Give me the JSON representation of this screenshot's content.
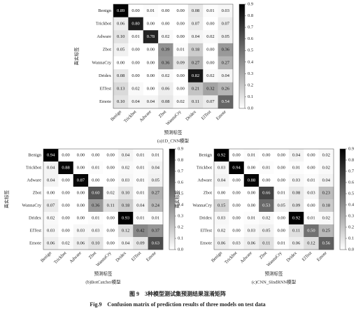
{
  "chart_data": [
    {
      "type": "heatmap",
      "title": "(a)1D_CNN模型",
      "xlabel": "预测标签",
      "ylabel": "真实标签",
      "x_categories": [
        "Benign",
        "Trickbot",
        "Adware",
        "Zbot",
        "WannaCry",
        "Dridex",
        "ElTest",
        "Emote"
      ],
      "y_categories": [
        "Benign",
        "Trickbot",
        "Adware",
        "Zbot",
        "WannaCry",
        "Dridex",
        "ElTest",
        "Emote"
      ],
      "values": [
        [
          0.89,
          0,
          0.01,
          0,
          0,
          0.08,
          0.01,
          0.03
        ],
        [
          0.06,
          0.8,
          0,
          0,
          0,
          0.07,
          0,
          0.07
        ],
        [
          0.1,
          0.01,
          0.78,
          0.02,
          0,
          0.04,
          0.02,
          0.05
        ],
        [
          0.05,
          0,
          0,
          0.39,
          0.01,
          0.18,
          0,
          0.36
        ],
        [
          0,
          0,
          0,
          0.36,
          0.09,
          0.27,
          0,
          0.27
        ],
        [
          0.08,
          0,
          0,
          0.02,
          0,
          0.82,
          0.02,
          0.04
        ],
        [
          0.13,
          0.02,
          0,
          0.06,
          0,
          0.21,
          0.32,
          0.26
        ],
        [
          0.1,
          0.04,
          0.04,
          0.08,
          0.02,
          0.11,
          0.07,
          0.54
        ]
      ],
      "value_labels": [
        [
          "0.89",
          "0.00",
          "0.01",
          "0.00",
          "0.00",
          "0.08",
          "0.01",
          "0.03"
        ],
        [
          "0.06",
          "0.80",
          "0.00",
          "0.00",
          "0.00",
          "0.07",
          "0.00",
          "0.07"
        ],
        [
          "0.10",
          "0.01",
          "0.78",
          "0.02",
          "0.00",
          "0.04",
          "0.02",
          "0.05"
        ],
        [
          "0.05",
          "0.00",
          "0.00",
          "0.39",
          "0.01",
          "0.18",
          "0.00",
          "0.36"
        ],
        [
          "0.00",
          "0.00",
          "0.00",
          "0.36",
          "0.09",
          "0.27",
          "0.00",
          "0.27"
        ],
        [
          "0.08",
          "0.00",
          "0.00",
          "0.02",
          "0.00",
          "0.82",
          "0.02",
          "0.04"
        ],
        [
          "0.13",
          "0.02",
          "0.00",
          "0.06",
          "0.00",
          "0.21",
          "0.32",
          "0.26"
        ],
        [
          "0.10",
          "0.04",
          "0.04",
          "0.08",
          "0.02",
          "0.11",
          "0.07",
          "0.54"
        ]
      ],
      "clim": [
        0,
        0.9
      ],
      "cticks": [
        {
          "value": 0,
          "label": "0.0"
        },
        0.1,
        0.2,
        0.3,
        0.4,
        0.5,
        0.6,
        0.7,
        0.8,
        0.9
      ]
    },
    {
      "type": "heatmap",
      "title": "(b)BotCatcher模型",
      "xlabel": "预测标签",
      "ylabel": "真实标签",
      "x_categories": [
        "Benign",
        "Trickbot",
        "Adware",
        "Zbot",
        "WannaCry",
        "Dridex",
        "ElTest",
        "Emote"
      ],
      "y_categories": [
        "Benign",
        "Trickbot",
        "Adware",
        "Zbot",
        "WannaCry",
        "Dridex",
        "ElTest",
        "Emote"
      ],
      "values": [
        [
          0.94,
          0,
          0,
          0,
          0,
          0.04,
          0.01,
          0.01
        ],
        [
          0.04,
          0.88,
          0,
          0.01,
          0,
          0.02,
          0.01,
          0.04
        ],
        [
          0.04,
          0,
          0.87,
          0,
          0,
          0.03,
          0.01,
          0.05
        ],
        [
          0,
          0,
          0,
          0.6,
          0.02,
          0.1,
          0.01,
          0.27
        ],
        [
          0.07,
          0,
          0,
          0.36,
          0.11,
          0.18,
          0.04,
          0.24
        ],
        [
          0.02,
          0,
          0,
          0.01,
          0,
          0.93,
          0.01,
          0.01
        ],
        [
          0.03,
          0,
          0.03,
          0.03,
          0,
          0.12,
          0.42,
          0.37
        ],
        [
          0.06,
          0.02,
          0.06,
          0.1,
          0,
          0.04,
          0.09,
          0.63
        ]
      ],
      "value_labels": [
        [
          "0.94",
          "0.00",
          "0.00",
          "0.00",
          "0.00",
          "0.04",
          "0.01",
          "0.01"
        ],
        [
          "0.04",
          "0.88",
          "0.00",
          "0.01",
          "0.00",
          "0.02",
          "0.01",
          "0.04"
        ],
        [
          "0.04",
          "0.00",
          "0.87",
          "0.00",
          "0.00",
          "0.03",
          "0.01",
          "0.05"
        ],
        [
          "0.00",
          "0.00",
          "0.00",
          "0.60",
          "0.02",
          "0.10",
          "0.01",
          "0.27"
        ],
        [
          "0.07",
          "0.00",
          "0.00",
          "0.36",
          "0.11",
          "0.18",
          "0.04",
          "0.24"
        ],
        [
          "0.02",
          "0.00",
          "0.00",
          "0.01",
          "0.00",
          "0.93",
          "0.01",
          "0.01"
        ],
        [
          "0.03",
          "0.00",
          "0.03",
          "0.03",
          "0.00",
          "0.12",
          "0.42",
          "0.37"
        ],
        [
          "0.06",
          "0.02",
          "0.06",
          "0.10",
          "0.00",
          "0.04",
          "0.09",
          "0.63"
        ]
      ],
      "clim": [
        0,
        0.9
      ],
      "cticks": [
        {
          "value": 0,
          "label": "0.0"
        },
        0.1,
        0.2,
        0.3,
        0.4,
        0.5,
        0.6,
        0.7,
        0.8,
        0.9
      ]
    },
    {
      "type": "heatmap",
      "title": "(c)CNN_SIndRNN模型",
      "xlabel": "预测标签",
      "ylabel": "真实标签",
      "x_categories": [
        "Benign",
        "Trickbot",
        "Adware",
        "Zbot",
        "WannaCry",
        "Dridex",
        "ElTest",
        "Emote"
      ],
      "y_categories": [
        "Benign",
        "Trickbot",
        "Adware",
        "Zbot",
        "WannaCry",
        "Dridex",
        "ElTest",
        "Emote"
      ],
      "values": [
        [
          0.92,
          0,
          0.01,
          0,
          0,
          0.04,
          0,
          0.02
        ],
        [
          0.03,
          0.94,
          0,
          0.01,
          0,
          0.01,
          0,
          0.02
        ],
        [
          0.04,
          0,
          0.88,
          0,
          0,
          0.03,
          0.01,
          0.04
        ],
        [
          0,
          0,
          0,
          0.66,
          0.01,
          0.08,
          0.03,
          0.23
        ],
        [
          0.15,
          0,
          0,
          0.53,
          0.05,
          0.09,
          0,
          0.18
        ],
        [
          0.03,
          0,
          0.01,
          0.02,
          0,
          0.92,
          0.01,
          0.02
        ],
        [
          0.02,
          0,
          0.03,
          0.05,
          0,
          0.11,
          0.5,
          0.25
        ],
        [
          0.06,
          0.03,
          0.06,
          0.11,
          0.01,
          0.06,
          0.12,
          0.56
        ]
      ],
      "value_labels": [
        [
          "0.92",
          "0.00",
          "0.01",
          "0.00",
          "0.00",
          "0.04",
          "0.00",
          "0.02"
        ],
        [
          "0.03",
          "0.94",
          "0.00",
          "0.01",
          "0.00",
          "0.01",
          "0.00",
          "0.02"
        ],
        [
          "0.04",
          "0.00",
          "0.88",
          "0.00",
          "0.00",
          "0.03",
          "0.01",
          "0.04"
        ],
        [
          "0.00",
          "0.00",
          "0.00",
          "0.66",
          "0.01",
          "0.08",
          "0.03",
          "0.23"
        ],
        [
          "0.15",
          "0.00",
          "0.00",
          "0.53",
          "0.05",
          "0.09",
          "0.00",
          "0.18"
        ],
        [
          "0.03",
          "0.00",
          "0.01",
          "0.02",
          "0.00",
          "0.92",
          "0.01",
          "0.02"
        ],
        [
          "0.02",
          "0.00",
          "0.03",
          "0.05",
          "0.00",
          "0.11",
          "0.50",
          "0.25"
        ],
        [
          "0.06",
          "0.03",
          "0.06",
          "0.11",
          "0.01",
          "0.06",
          "0.12",
          "0.56"
        ]
      ],
      "clim": [
        0,
        0.9
      ],
      "cticks": [
        {
          "value": 0,
          "label": "0.0"
        },
        0.1,
        0.2,
        0.3,
        0.4,
        0.5,
        0.6,
        0.7,
        0.8,
        0.9
      ]
    }
  ],
  "caption": {
    "zh": "图 9　3种模型测试集预测结果混淆矩阵",
    "en": "Fig.9　Confusion matrix of prediction results of three models on test data"
  }
}
